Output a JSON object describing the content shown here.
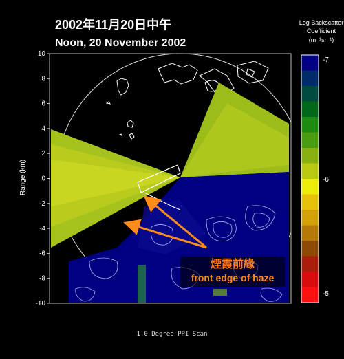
{
  "header": {
    "title_cn": "2002年11月20日中午",
    "title_en": "Noon, 20 November 2002"
  },
  "colorbar": {
    "title_line1": "Log Backscatter",
    "title_line2": "Coefficient",
    "title_line3": "(m⁻¹sr⁻¹)",
    "tick_labels": [
      "-7",
      "-6",
      "-5"
    ],
    "colors": [
      "#000080",
      "#002a6a",
      "#004a40",
      "#006818",
      "#1f8a10",
      "#4a9c10",
      "#88b010",
      "#b9c810",
      "#ecec0a",
      "#e6c20a",
      "#d2a208",
      "#b47a06",
      "#8c4a04",
      "#a81e0a",
      "#d80c0c",
      "#ff1010"
    ]
  },
  "annotation": {
    "label_cn": "煙霞前緣",
    "label_en": "front edge of haze"
  },
  "footer": {
    "scan_label": "1.0 Degree PPI Scan"
  },
  "chart_data": {
    "type": "heatmap",
    "title": "2002年11月20日中午 / Noon, 20 November 2002",
    "ylabel": "Range (km)",
    "ylim": [
      -10,
      10
    ],
    "y_tick_labels": [
      "10",
      "8",
      "6",
      "4",
      "2",
      "0",
      "-2",
      "-4",
      "-6",
      "-8",
      "-10"
    ],
    "grid": false,
    "legend": "right",
    "colorbar": {
      "label": "Log Backscatter Coefficient (m-1sr-1)",
      "min": -7,
      "max": -5,
      "labeled_ticks": [
        -7,
        -6,
        -5
      ]
    },
    "scan": "1.0 Degree PPI Scan",
    "annotation": "煙霞前緣 front edge of haze"
  }
}
